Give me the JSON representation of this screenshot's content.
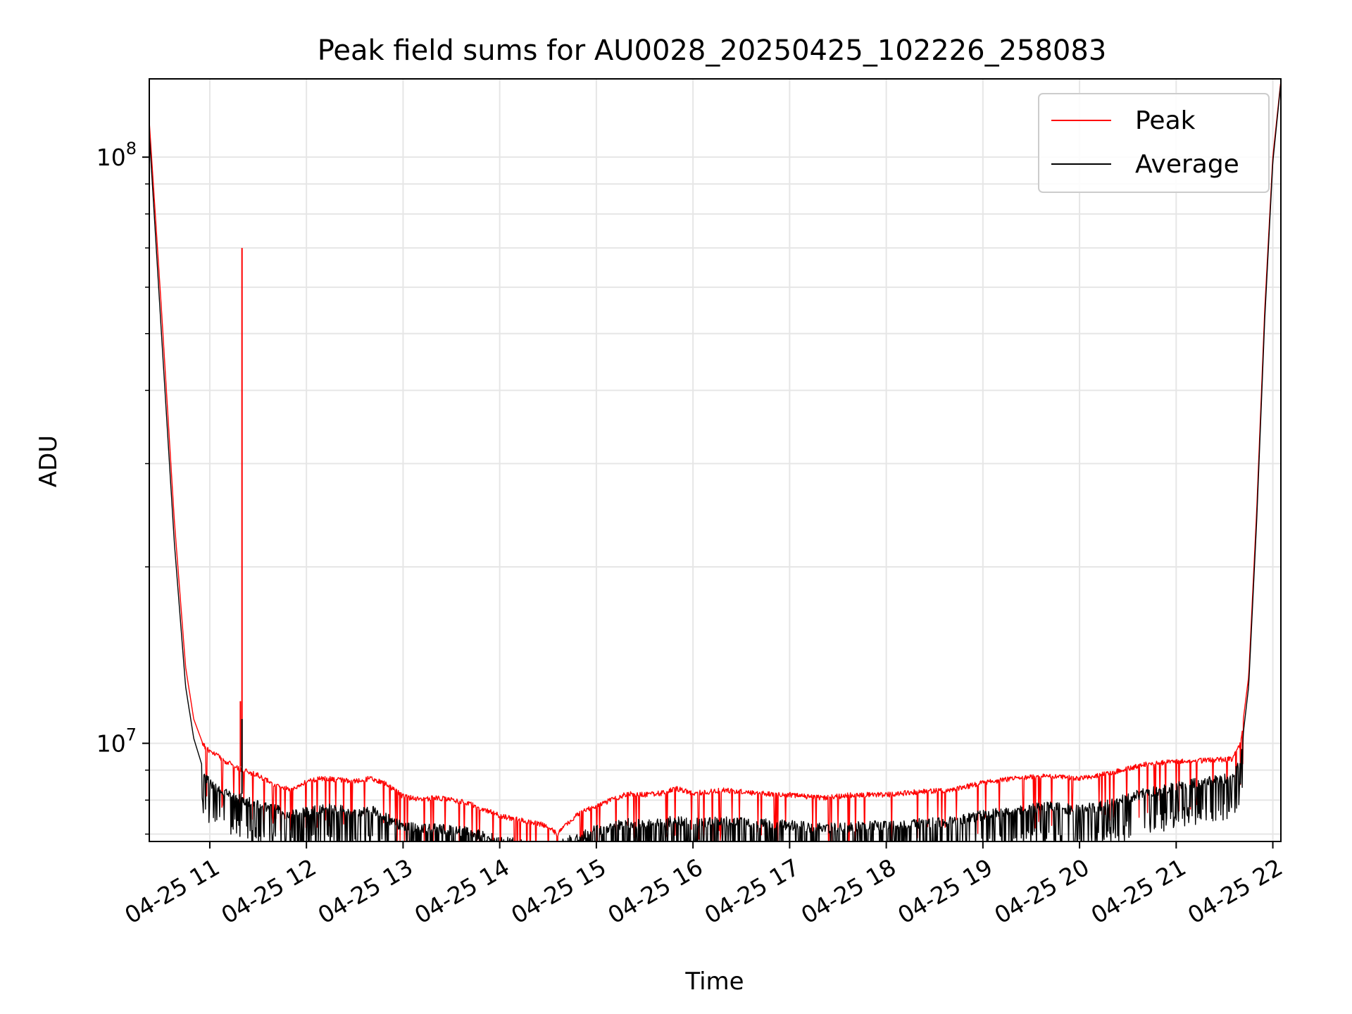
{
  "chart_data": {
    "type": "line",
    "title": "Peak field sums for AU0028_20250425_102226_258083",
    "xlabel": "Time",
    "ylabel": "ADU",
    "x_range": [
      "2025-04-25T10:22:26",
      "2025-04-25T22:05:00"
    ],
    "y_scale": "log",
    "ylim": [
      6800000,
      136000000
    ],
    "grid": true,
    "legend_position": "top-right",
    "x_ticks": [
      {
        "t": "2025-04-25T11:00",
        "label": "04-25 11"
      },
      {
        "t": "2025-04-25T12:00",
        "label": "04-25 12"
      },
      {
        "t": "2025-04-25T13:00",
        "label": "04-25 13"
      },
      {
        "t": "2025-04-25T14:00",
        "label": "04-25 14"
      },
      {
        "t": "2025-04-25T15:00",
        "label": "04-25 15"
      },
      {
        "t": "2025-04-25T16:00",
        "label": "04-25 16"
      },
      {
        "t": "2025-04-25T17:00",
        "label": "04-25 17"
      },
      {
        "t": "2025-04-25T18:00",
        "label": "04-25 18"
      },
      {
        "t": "2025-04-25T19:00",
        "label": "04-25 19"
      },
      {
        "t": "2025-04-25T20:00",
        "label": "04-25 20"
      },
      {
        "t": "2025-04-25T21:00",
        "label": "04-25 21"
      },
      {
        "t": "2025-04-25T22:00",
        "label": "04-25 22"
      }
    ],
    "y_ticks": [
      {
        "value": 10000000,
        "base": "10",
        "exp": "7"
      },
      {
        "value": 100000000,
        "base": "10",
        "exp": "8"
      }
    ],
    "series": [
      {
        "name": "Peak",
        "color": "#ff0000",
        "x": [
          "10:22",
          "10:30",
          "10:38",
          "10:45",
          "10:50",
          "10:55",
          "11:00",
          "11:10",
          "11:20",
          "11:30",
          "11:40",
          "11:50",
          "12:00",
          "12:10",
          "12:20",
          "12:30",
          "12:40",
          "12:50",
          "13:00",
          "13:10",
          "13:20",
          "13:30",
          "13:40",
          "13:50",
          "14:00",
          "14:10",
          "14:20",
          "14:30",
          "14:36",
          "14:40",
          "14:50",
          "15:00",
          "15:10",
          "15:20",
          "15:30",
          "15:40",
          "15:50",
          "16:00",
          "16:20",
          "16:40",
          "17:00",
          "17:20",
          "17:40",
          "18:00",
          "18:20",
          "18:40",
          "19:00",
          "19:20",
          "19:40",
          "20:00",
          "20:20",
          "20:40",
          "21:00",
          "21:20",
          "21:35",
          "21:40",
          "21:45",
          "21:50",
          "21:55",
          "22:00",
          "22:05"
        ],
        "y": [
          120000000,
          55000000,
          24000000,
          13500000,
          11000000,
          10100000,
          9800000,
          9400000,
          9100000,
          8900000,
          8600000,
          8400000,
          8700000,
          8800000,
          8750000,
          8700000,
          8800000,
          8600000,
          8200000,
          8100000,
          8150000,
          8100000,
          8000000,
          7800000,
          7600000,
          7500000,
          7400000,
          7300000,
          7050000,
          7300000,
          7700000,
          7900000,
          8100000,
          8300000,
          8250000,
          8300000,
          8450000,
          8300000,
          8400000,
          8300000,
          8250000,
          8150000,
          8250000,
          8250000,
          8350000,
          8400000,
          8650000,
          8800000,
          8900000,
          8800000,
          9000000,
          9300000,
          9400000,
          9450000,
          9500000,
          10100000,
          13000000,
          25000000,
          55000000,
          100000000,
          135000000
        ],
        "spikes": [
          {
            "x": "11:20",
            "y": 70000000
          },
          {
            "x": "11:19",
            "y": 11800000
          }
        ]
      },
      {
        "name": "Average",
        "color": "#000000",
        "x": [
          "10:22",
          "10:30",
          "10:38",
          "10:45",
          "10:50",
          "10:55",
          "11:00",
          "11:10",
          "11:20",
          "11:30",
          "11:40",
          "11:50",
          "12:00",
          "12:10",
          "12:20",
          "12:30",
          "12:40",
          "12:50",
          "13:00",
          "13:10",
          "13:20",
          "13:30",
          "13:40",
          "13:50",
          "14:00",
          "14:10",
          "14:20",
          "14:30",
          "14:36",
          "14:40",
          "14:50",
          "15:00",
          "15:10",
          "15:20",
          "15:30",
          "15:40",
          "15:50",
          "16:00",
          "16:20",
          "16:40",
          "17:00",
          "17:20",
          "17:40",
          "18:00",
          "18:20",
          "18:40",
          "19:00",
          "19:20",
          "19:40",
          "20:00",
          "20:20",
          "20:40",
          "21:00",
          "21:20",
          "21:35",
          "21:40",
          "21:45",
          "21:50",
          "21:55",
          "22:00",
          "22:05"
        ],
        "y": [
          115000000,
          50000000,
          22000000,
          12500000,
          10200000,
          9200000,
          8700000,
          8400000,
          8200000,
          8000000,
          7900000,
          7700000,
          7800000,
          7900000,
          7850000,
          7800000,
          7850000,
          7600000,
          7350000,
          7300000,
          7300000,
          7250000,
          7200000,
          7100000,
          6950000,
          6900000,
          6850000,
          6800000,
          6750000,
          6900000,
          7100000,
          7250000,
          7350000,
          7450000,
          7400000,
          7450000,
          7550000,
          7450000,
          7500000,
          7450000,
          7400000,
          7300000,
          7350000,
          7400000,
          7450000,
          7500000,
          7700000,
          7850000,
          7950000,
          7850000,
          8050000,
          8400000,
          8600000,
          8800000,
          8900000,
          9500000,
          12500000,
          24000000,
          53000000,
          98000000,
          134000000
        ],
        "spikes": [
          {
            "x": "11:20",
            "y": 11000000
          }
        ]
      }
    ]
  }
}
